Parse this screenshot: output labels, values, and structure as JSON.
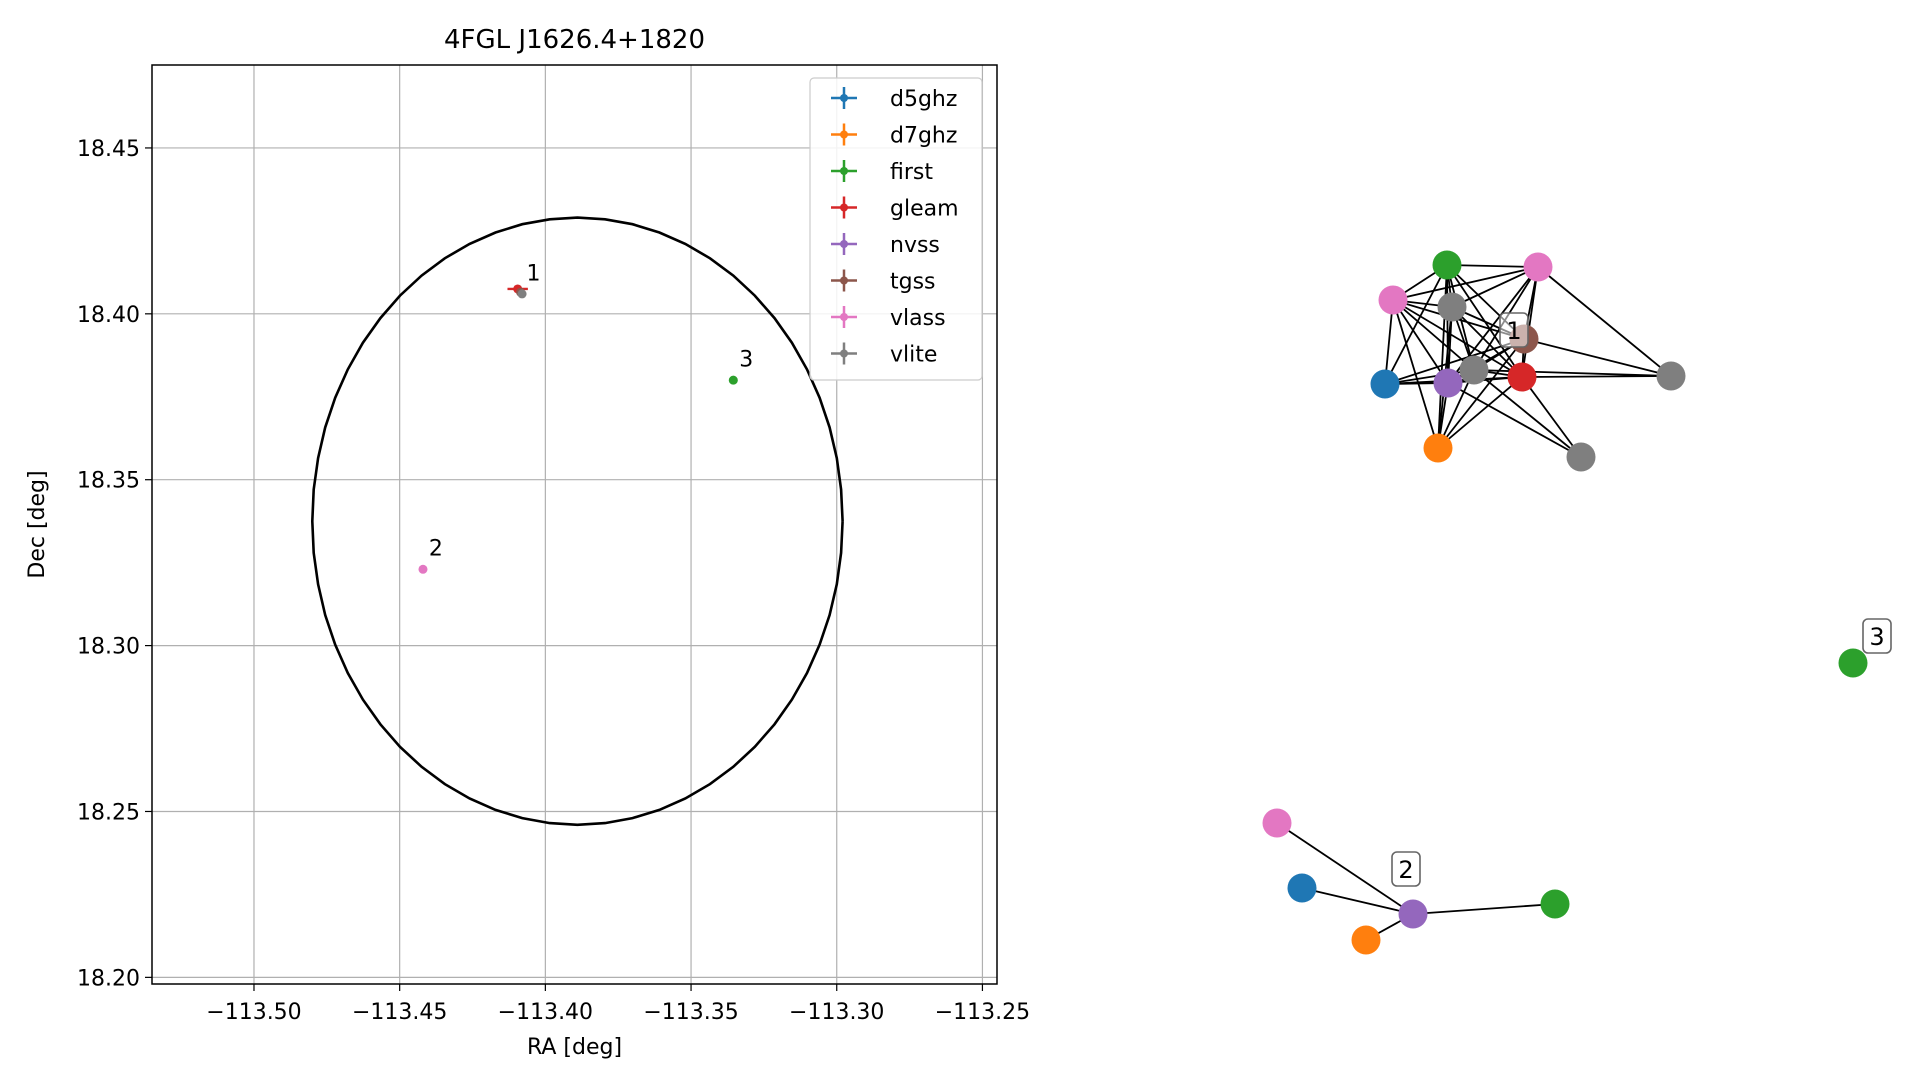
{
  "chart_data": [
    {
      "type": "scatter",
      "title": "4FGL J1626.4+1820",
      "xlabel": "RA [deg]",
      "ylabel": "Dec [deg]",
      "xlim": [
        -113.535,
        -113.245
      ],
      "ylim": [
        18.198,
        18.475
      ],
      "xticks": [
        -113.5,
        -113.45,
        -113.4,
        -113.35,
        -113.3,
        -113.25
      ],
      "xtick_labels": [
        "−113.50",
        "−113.45",
        "−113.40",
        "−113.35",
        "−113.30",
        "−113.25"
      ],
      "yticks": [
        18.2,
        18.25,
        18.3,
        18.35,
        18.4,
        18.45
      ],
      "ytick_labels": [
        "18.20",
        "18.25",
        "18.30",
        "18.35",
        "18.40",
        "18.45"
      ],
      "grid": true,
      "legend_position": "top-right",
      "legend": [
        {
          "name": "d5ghz",
          "color": "#1f77b4"
        },
        {
          "name": "d7ghz",
          "color": "#ff7f0e"
        },
        {
          "name": "first",
          "color": "#2ca02c"
        },
        {
          "name": "gleam",
          "color": "#d62728"
        },
        {
          "name": "nvss",
          "color": "#9467bd"
        },
        {
          "name": "tgss",
          "color": "#8c564b"
        },
        {
          "name": "vlass",
          "color": "#e377c2"
        },
        {
          "name": "vlite",
          "color": "#7f7f7f"
        }
      ],
      "ellipse": {
        "center_ra": -113.389,
        "center_dec": 18.3375,
        "semi_axis_ra": 0.091,
        "semi_axis_dec": 0.0915
      },
      "points": [
        {
          "series": "gleam",
          "ra": -113.4095,
          "dec": 18.4075,
          "color": "#d62728",
          "err_ra": 0.0035,
          "err_dec": 0.0
        },
        {
          "series": "tgss",
          "ra": -113.4085,
          "dec": 18.4065,
          "color": "#8c564b",
          "err_ra": 0.0,
          "err_dec": 0.0
        },
        {
          "series": "vlite",
          "ra": -113.408,
          "dec": 18.406,
          "color": "#7f7f7f",
          "err_ra": 0.0015,
          "err_dec": 0.001
        },
        {
          "series": "first",
          "ra": -113.3355,
          "dec": 18.38,
          "color": "#2ca02c",
          "err_ra": 0.0,
          "err_dec": 0.0
        },
        {
          "series": "vlass",
          "ra": -113.442,
          "dec": 18.323,
          "color": "#e377c2",
          "err_ra": 0.0,
          "err_dec": 0.0
        }
      ],
      "annotations": [
        {
          "text": "1",
          "ra": -113.4075,
          "dec": 18.4095
        },
        {
          "text": "3",
          "ra": -113.3345,
          "dec": 18.3835
        },
        {
          "text": "2",
          "ra": -113.441,
          "dec": 18.3265
        }
      ]
    },
    {
      "type": "network",
      "nodes": [
        {
          "id": "c1_first",
          "color": "#2ca02c"
        },
        {
          "id": "c1_vlass_a",
          "color": "#e377c2"
        },
        {
          "id": "c1_vlass_b",
          "color": "#e377c2"
        },
        {
          "id": "c1_vlite_a",
          "color": "#7f7f7f"
        },
        {
          "id": "c1_tgss",
          "color": "#8c564b"
        },
        {
          "id": "c1_d5ghz",
          "color": "#1f77b4"
        },
        {
          "id": "c1_nvss",
          "color": "#9467bd"
        },
        {
          "id": "c1_vlite_b",
          "color": "#7f7f7f"
        },
        {
          "id": "c1_gleam",
          "color": "#d62728"
        },
        {
          "id": "c1_vlite_c",
          "color": "#7f7f7f"
        },
        {
          "id": "c1_d7ghz",
          "color": "#ff7f0e"
        },
        {
          "id": "c1_vlite_d",
          "color": "#7f7f7f"
        },
        {
          "id": "c3_first",
          "color": "#2ca02c"
        },
        {
          "id": "c2_vlass",
          "color": "#e377c2"
        },
        {
          "id": "c2_d5ghz",
          "color": "#1f77b4"
        },
        {
          "id": "c2_nvss",
          "color": "#9467bd"
        },
        {
          "id": "c2_first",
          "color": "#2ca02c"
        },
        {
          "id": "c2_d7ghz",
          "color": "#ff7f0e"
        }
      ],
      "edges": [
        [
          "c1_first",
          "c1_vlass_b"
        ],
        [
          "c1_first",
          "c1_vlass_a"
        ],
        [
          "c1_first",
          "c1_tgss"
        ],
        [
          "c1_first",
          "c1_vlite_b"
        ],
        [
          "c1_first",
          "c1_gleam"
        ],
        [
          "c1_first",
          "c1_d5ghz"
        ],
        [
          "c1_first",
          "c1_nvss"
        ],
        [
          "c1_first",
          "c1_d7ghz"
        ],
        [
          "c1_first",
          "c1_vlite_a"
        ],
        [
          "c1_vlass_b",
          "c1_vlite_a"
        ],
        [
          "c1_vlass_b",
          "c1_tgss"
        ],
        [
          "c1_vlass_b",
          "c1_gleam"
        ],
        [
          "c1_vlass_b",
          "c1_d5ghz"
        ],
        [
          "c1_vlass_b",
          "c1_nvss"
        ],
        [
          "c1_vlass_b",
          "c1_d7ghz"
        ],
        [
          "c1_vlass_b",
          "c1_vlite_b"
        ],
        [
          "c1_vlass_b",
          "c1_vlass_a"
        ],
        [
          "c1_vlass_a",
          "c1_vlite_a"
        ],
        [
          "c1_vlass_a",
          "c1_tgss"
        ],
        [
          "c1_vlass_a",
          "c1_gleam"
        ],
        [
          "c1_vlass_a",
          "c1_nvss"
        ],
        [
          "c1_vlass_a",
          "c1_vlite_b"
        ],
        [
          "c1_vlass_a",
          "c1_vlite_c"
        ],
        [
          "c1_vlite_a",
          "c1_tgss"
        ],
        [
          "c1_vlite_a",
          "c1_nvss"
        ],
        [
          "c1_vlite_a",
          "c1_d7ghz"
        ],
        [
          "c1_vlite_a",
          "c1_gleam"
        ],
        [
          "c1_vlite_a",
          "c1_vlite_b"
        ],
        [
          "c1_tgss",
          "c1_d5ghz"
        ],
        [
          "c1_tgss",
          "c1_nvss"
        ],
        [
          "c1_tgss",
          "c1_gleam"
        ],
        [
          "c1_tgss",
          "c1_vlite_b"
        ],
        [
          "c1_tgss",
          "c1_d7ghz"
        ],
        [
          "c1_tgss",
          "c1_vlite_c"
        ],
        [
          "c1_d5ghz",
          "c1_nvss"
        ],
        [
          "c1_d5ghz",
          "c1_gleam"
        ],
        [
          "c1_d5ghz",
          "c1_vlite_b"
        ],
        [
          "c1_nvss",
          "c1_gleam"
        ],
        [
          "c1_nvss",
          "c1_vlite_b"
        ],
        [
          "c1_nvss",
          "c1_d7ghz"
        ],
        [
          "c1_gleam",
          "c1_vlite_d"
        ],
        [
          "c1_gleam",
          "c1_vlite_c"
        ],
        [
          "c1_gleam",
          "c1_d7ghz"
        ],
        [
          "c1_gleam",
          "c1_vlite_b"
        ],
        [
          "c1_vlite_b",
          "c1_d7ghz"
        ],
        [
          "c1_vlite_b",
          "c1_vlite_c"
        ],
        [
          "c1_vlite_b",
          "c1_vlite_d"
        ],
        [
          "c1_nvss",
          "c1_vlite_d"
        ],
        [
          "c2_vlass",
          "c2_nvss"
        ],
        [
          "c2_d5ghz",
          "c2_nvss"
        ],
        [
          "c2_nvss",
          "c2_first"
        ],
        [
          "c2_nvss",
          "c2_d7ghz"
        ]
      ],
      "labels": [
        {
          "text": "1",
          "anchor": "c1_tgss"
        },
        {
          "text": "2",
          "anchor": "c2_nvss"
        },
        {
          "text": "3",
          "anchor": "c3_first"
        }
      ]
    }
  ]
}
